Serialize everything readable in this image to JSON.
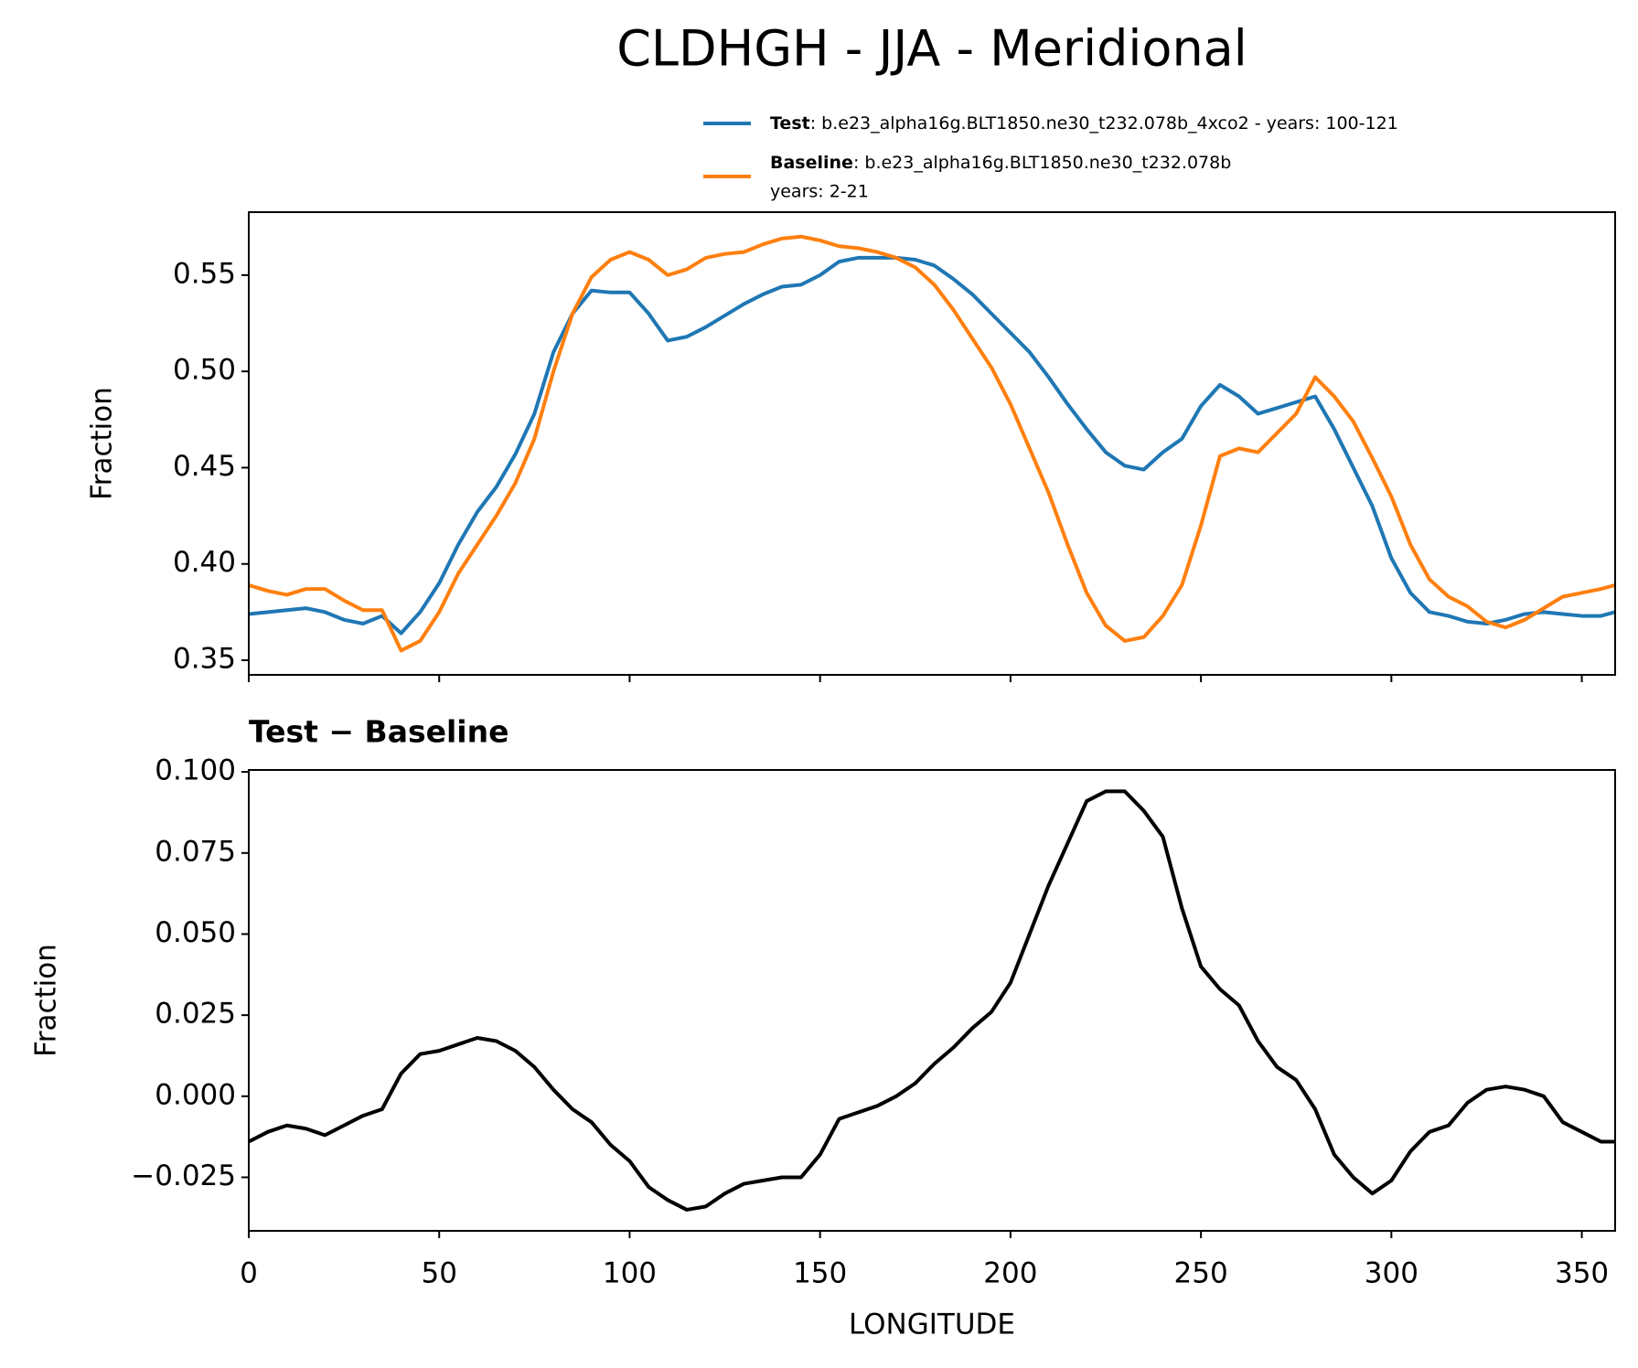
{
  "chart_data": [
    {
      "type": "line",
      "title": "CLDHGH - JJA - Meridional",
      "ylabel": "Fraction",
      "x": [
        0,
        5,
        10,
        15,
        20,
        25,
        30,
        35,
        40,
        45,
        50,
        55,
        60,
        65,
        70,
        75,
        80,
        85,
        90,
        95,
        100,
        105,
        110,
        115,
        120,
        125,
        130,
        135,
        140,
        145,
        150,
        155,
        160,
        165,
        170,
        175,
        180,
        185,
        190,
        195,
        200,
        205,
        210,
        215,
        220,
        225,
        230,
        235,
        240,
        245,
        250,
        255,
        260,
        265,
        270,
        275,
        280,
        285,
        290,
        295,
        300,
        305,
        310,
        315,
        320,
        325,
        330,
        335,
        340,
        345,
        350,
        355,
        358.75
      ],
      "series": [
        {
          "name": "Test",
          "description": [
            ": b.e23_alpha16g.BLT1850.ne30_t232.078b_4xco2 - years: 100-121"
          ],
          "color": "#1f77b4",
          "values": [
            0.374,
            0.375,
            0.376,
            0.377,
            0.375,
            0.371,
            0.369,
            0.373,
            0.364,
            0.375,
            0.39,
            0.41,
            0.427,
            0.44,
            0.457,
            0.478,
            0.51,
            0.53,
            0.542,
            0.541,
            0.541,
            0.53,
            0.516,
            0.518,
            0.523,
            0.529,
            0.535,
            0.54,
            0.544,
            0.545,
            0.55,
            0.557,
            0.559,
            0.559,
            0.559,
            0.558,
            0.555,
            0.548,
            0.54,
            0.53,
            0.52,
            0.51,
            0.497,
            0.483,
            0.47,
            0.458,
            0.451,
            0.449,
            0.458,
            0.465,
            0.482,
            0.493,
            0.487,
            0.478,
            0.481,
            0.484,
            0.487,
            0.47,
            0.45,
            0.43,
            0.403,
            0.385,
            0.375,
            0.373,
            0.37,
            0.369,
            0.371,
            0.374,
            0.375,
            0.374,
            0.373,
            0.373,
            0.375
          ]
        },
        {
          "name": "Baseline",
          "description": [
            ": b.e23_alpha16g.BLT1850.ne30_t232.078b",
            "years: 2-21"
          ],
          "color": "#ff7f0e",
          "values": [
            0.389,
            0.386,
            0.384,
            0.387,
            0.387,
            0.381,
            0.376,
            0.376,
            0.355,
            0.36,
            0.375,
            0.395,
            0.41,
            0.425,
            0.442,
            0.465,
            0.5,
            0.53,
            0.549,
            0.558,
            0.562,
            0.558,
            0.55,
            0.553,
            0.559,
            0.561,
            0.562,
            0.566,
            0.569,
            0.57,
            0.568,
            0.565,
            0.564,
            0.562,
            0.559,
            0.554,
            0.545,
            0.532,
            0.517,
            0.502,
            0.483,
            0.46,
            0.437,
            0.41,
            0.385,
            0.368,
            0.36,
            0.362,
            0.373,
            0.389,
            0.42,
            0.456,
            0.46,
            0.458,
            0.468,
            0.478,
            0.497,
            0.487,
            0.474,
            0.455,
            0.435,
            0.41,
            0.392,
            0.383,
            0.378,
            0.37,
            0.367,
            0.371,
            0.377,
            0.383,
            0.385,
            0.387,
            0.389
          ]
        }
      ],
      "xlim": [
        0,
        358.75
      ],
      "xticks": [
        0,
        50,
        100,
        150,
        200,
        250,
        300,
        350
      ],
      "ylim": [
        0.3424,
        0.5827
      ],
      "yticks": [
        0.35,
        {
          "value": 0.4,
          "label": "0.40"
        },
        0.45,
        {
          "value": 0.5,
          "label": "0.50"
        },
        0.55
      ]
    },
    {
      "type": "line",
      "title": "Test − Baseline",
      "ylabel": "Fraction",
      "xlabel": "LONGITUDE",
      "x": [
        0,
        5,
        10,
        15,
        20,
        25,
        30,
        35,
        40,
        45,
        50,
        55,
        60,
        65,
        70,
        75,
        80,
        85,
        90,
        95,
        100,
        105,
        110,
        115,
        120,
        125,
        130,
        135,
        140,
        145,
        150,
        155,
        160,
        165,
        170,
        175,
        180,
        185,
        190,
        195,
        200,
        205,
        210,
        215,
        220,
        225,
        230,
        235,
        240,
        245,
        250,
        255,
        260,
        265,
        270,
        275,
        280,
        285,
        290,
        295,
        300,
        305,
        310,
        315,
        320,
        325,
        330,
        335,
        340,
        345,
        350,
        355,
        358.75
      ],
      "series": [
        {
          "color": "#000000",
          "values": [
            -0.014,
            -0.011,
            -0.009,
            -0.01,
            -0.012,
            -0.009,
            -0.006,
            -0.004,
            0.007,
            0.013,
            0.014,
            0.016,
            0.018,
            0.017,
            0.014,
            0.009,
            0.002,
            -0.004,
            -0.008,
            -0.015,
            -0.02,
            -0.028,
            -0.032,
            -0.035,
            -0.034,
            -0.03,
            -0.027,
            -0.026,
            -0.025,
            -0.025,
            -0.018,
            -0.007,
            -0.005,
            -0.003,
            0.0,
            0.004,
            0.01,
            0.015,
            0.021,
            0.026,
            0.035,
            0.05,
            0.065,
            0.078,
            0.091,
            0.094,
            0.094,
            0.088,
            0.08,
            0.058,
            0.04,
            0.033,
            0.028,
            0.017,
            0.009,
            0.005,
            -0.004,
            -0.018,
            -0.025,
            -0.03,
            -0.026,
            -0.017,
            -0.011,
            -0.009,
            -0.002,
            0.002,
            0.003,
            0.002,
            0.0,
            -0.008,
            -0.011,
            -0.014,
            -0.014
          ]
        }
      ],
      "xlim": [
        0,
        358.75
      ],
      "xticks": [
        0,
        50,
        100,
        150,
        200,
        250,
        300,
        350
      ],
      "ylim": [
        -0.0415,
        0.1006
      ],
      "yticks": [
        {
          "value": -0.025,
          "label": "−0.025"
        },
        {
          "value": 0,
          "label": "0.000"
        },
        0.025,
        {
          "value": 0.05,
          "label": "0.050"
        },
        0.075,
        {
          "value": 0.1,
          "label": "0.100"
        }
      ]
    }
  ]
}
